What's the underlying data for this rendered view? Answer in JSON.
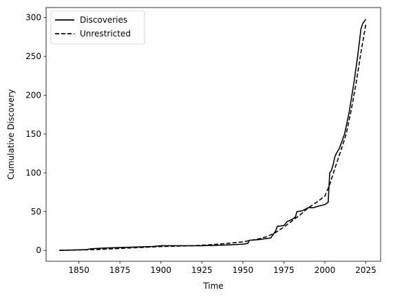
{
  "chart_data": {
    "type": "line",
    "title": "",
    "xlabel": "Time",
    "ylabel": "Cumulative Discovery",
    "xlim": [
      1830,
      2034
    ],
    "ylim": [
      -14,
      313
    ],
    "xticks": [
      1850,
      1875,
      1900,
      1925,
      1950,
      1975,
      2000,
      2025
    ],
    "yticks": [
      0,
      50,
      100,
      150,
      200,
      250,
      300
    ],
    "grid": false,
    "legend_position": "top-left",
    "series": [
      {
        "name": "Discoveries",
        "style": "solid",
        "color": "#000000",
        "x": [
          1838,
          1855,
          1857,
          1865,
          1880,
          1895,
          1900,
          1925,
          1940,
          1950,
          1953,
          1954,
          1960,
          1967,
          1970,
          1971,
          1975,
          1977,
          1980,
          1982,
          1983,
          1986,
          1990,
          1993,
          1996,
          2000,
          2002,
          2003,
          2004,
          2005,
          2006,
          2007,
          2009,
          2012,
          2015,
          2018,
          2020,
          2022,
          2023,
          2025
        ],
        "y": [
          0,
          1,
          2,
          3,
          4,
          5,
          6,
          6,
          7,
          8,
          9,
          13,
          14,
          16,
          25,
          31,
          32,
          37,
          40,
          43,
          50,
          51,
          55,
          55,
          57,
          59,
          62,
          100,
          103,
          110,
          120,
          125,
          132,
          150,
          180,
          220,
          250,
          285,
          292,
          298
        ]
      },
      {
        "name": "Unrestricted",
        "style": "dashed",
        "color": "#000000",
        "x": [
          1838,
          1860,
          1880,
          1900,
          1920,
          1935,
          1950,
          1960,
          1965,
          1970,
          1975,
          1980,
          1985,
          1990,
          1995,
          2000,
          2003,
          2006,
          2010,
          2013,
          2016,
          2019,
          2022,
          2025
        ],
        "y": [
          0,
          1,
          3,
          5,
          6,
          8,
          11,
          15,
          18,
          23,
          30,
          38,
          46,
          55,
          62,
          70,
          85,
          105,
          130,
          150,
          180,
          215,
          255,
          292
        ]
      }
    ]
  }
}
